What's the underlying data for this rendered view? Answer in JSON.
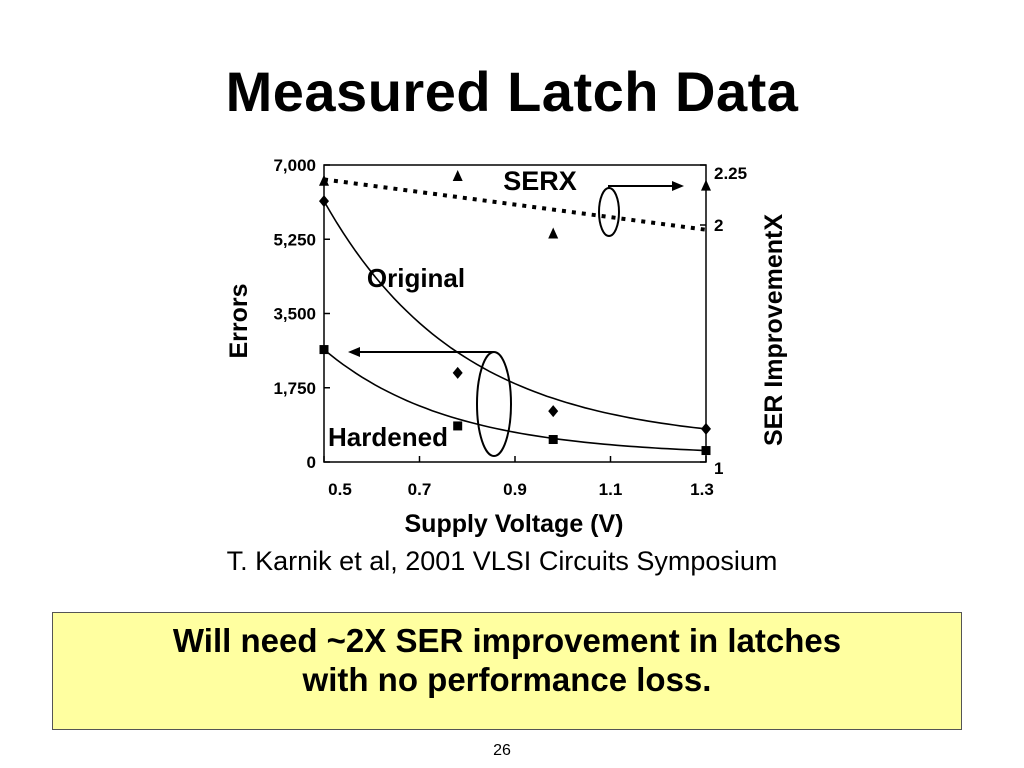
{
  "slide": {
    "title": "Measured Latch Data",
    "citation": "T. Karnik et al, 2001 VLSI Circuits Symposium",
    "callout_lines": [
      "Will need ~2X SER improvement in latches",
      "with no performance loss."
    ],
    "page_number": "26"
  },
  "chart_data": {
    "type": "scatter",
    "title": "",
    "xlabel": "Supply Voltage (V)",
    "ylabel": "Errors",
    "y2label": "SER ImprovementX",
    "xlim": [
      0.5,
      1.3
    ],
    "ylim": [
      0,
      7000
    ],
    "y2lim": [
      1,
      2.25
    ],
    "x_ticks": [
      "0.5",
      "0.7",
      "0.9",
      "1.1",
      "1.3"
    ],
    "y_ticks": [
      "0",
      "1,750",
      "3,500",
      "5,250",
      "7,000"
    ],
    "y2_ticks": [
      "1",
      "2",
      "2.25"
    ],
    "grid": false,
    "series": [
      {
        "name": "Original",
        "axis": "left",
        "marker": "diamond",
        "fit_curve": true,
        "x": [
          0.5,
          0.78,
          0.98,
          1.3
        ],
        "y": [
          6150,
          2100,
          1200,
          780
        ]
      },
      {
        "name": "Hardened",
        "axis": "left",
        "marker": "square",
        "fit_curve": true,
        "x": [
          0.5,
          0.78,
          0.98,
          1.3
        ],
        "y": [
          2650,
          850,
          530,
          270
        ]
      },
      {
        "name": "SERX",
        "axis": "right",
        "marker": "triangle",
        "trend": "dotted",
        "x": [
          0.5,
          0.78,
          0.98,
          1.3
        ],
        "y": [
          2.18,
          2.2,
          1.96,
          2.16
        ],
        "trend_y": [
          2.19,
          1.98
        ]
      }
    ],
    "annotations": [
      "SERX",
      "Original",
      "Hardened"
    ]
  }
}
